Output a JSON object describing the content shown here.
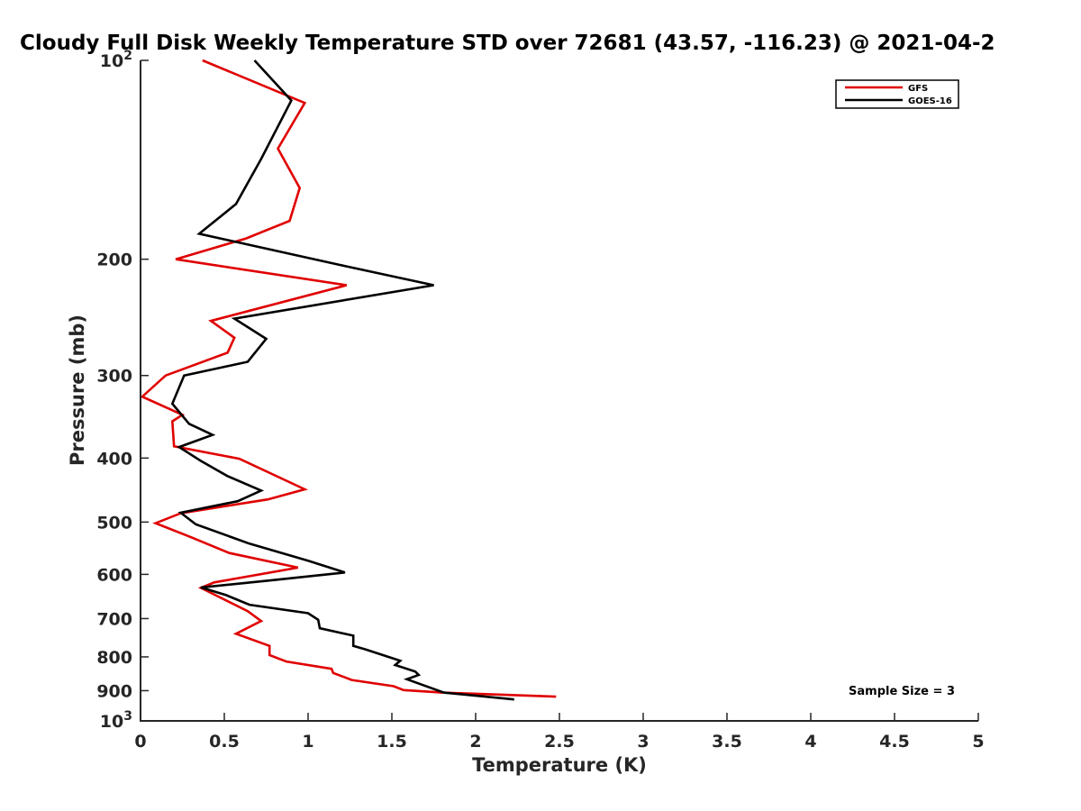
{
  "chart_data": {
    "type": "line",
    "title": "Cloudy Full Disk Weekly Temperature STD over 72681 (43.57, -116.23) @ 2021-04-2",
    "xlabel": "Temperature (K)",
    "ylabel": "Pressure (mb)",
    "xlim": [
      0,
      5
    ],
    "ylim": [
      100,
      1000
    ],
    "y_scale": "log",
    "y_reversed": true,
    "grid": false,
    "legend_position": "top-right",
    "x_ticks": [
      0,
      0.5,
      1,
      1.5,
      2,
      2.5,
      3,
      3.5,
      4,
      4.5,
      5
    ],
    "x_tick_labels": [
      "0",
      "0.5",
      "1",
      "1.5",
      "2",
      "2.5",
      "3",
      "3.5",
      "4",
      "4.5",
      "5"
    ],
    "y_ticks": [
      100,
      200,
      300,
      400,
      500,
      600,
      700,
      800,
      900,
      1000
    ],
    "y_tick_labels": [
      {
        "base": "10",
        "exp": "2"
      },
      {
        "base": "200",
        "exp": ""
      },
      {
        "base": "300",
        "exp": ""
      },
      {
        "base": "400",
        "exp": ""
      },
      {
        "base": "500",
        "exp": ""
      },
      {
        "base": "600",
        "exp": ""
      },
      {
        "base": "700",
        "exp": ""
      },
      {
        "base": "800",
        "exp": ""
      },
      {
        "base": "900",
        "exp": ""
      },
      {
        "base": "10",
        "exp": "3"
      }
    ],
    "annotation": "Sample Size = 3",
    "series": [
      {
        "name": "GFS",
        "color": "#e00000",
        "points": [
          [
            0.37,
            100
          ],
          [
            0.98,
            116
          ],
          [
            0.82,
            136
          ],
          [
            0.95,
            156
          ],
          [
            0.89,
            175
          ],
          [
            0.63,
            186
          ],
          [
            0.21,
            200
          ],
          [
            1.23,
            219
          ],
          [
            0.42,
            248
          ],
          [
            0.56,
            263
          ],
          [
            0.52,
            277
          ],
          [
            0.15,
            300
          ],
          [
            0.01,
            323
          ],
          [
            0.25,
            344
          ],
          [
            0.19,
            352
          ],
          [
            0.2,
            384
          ],
          [
            0.59,
            401
          ],
          [
            0.98,
            446
          ],
          [
            0.76,
            462
          ],
          [
            0.24,
            485
          ],
          [
            0.09,
            502
          ],
          [
            0.3,
            527
          ],
          [
            0.53,
            557
          ],
          [
            0.94,
            586
          ],
          [
            0.44,
            617
          ],
          [
            0.36,
            629
          ],
          [
            0.64,
            682
          ],
          [
            0.72,
            706
          ],
          [
            0.57,
            738
          ],
          [
            0.77,
            770
          ],
          [
            0.77,
            795
          ],
          [
            0.87,
            813
          ],
          [
            1.14,
            834
          ],
          [
            1.15,
            846
          ],
          [
            1.26,
            867
          ],
          [
            1.51,
            886
          ],
          [
            1.57,
            898
          ],
          [
            1.8,
            906
          ],
          [
            2.48,
            919
          ]
        ]
      },
      {
        "name": "GOES-16",
        "color": "#000000",
        "points": [
          [
            0.68,
            100
          ],
          [
            0.9,
            115
          ],
          [
            0.72,
            141
          ],
          [
            0.57,
            165
          ],
          [
            0.35,
            183
          ],
          [
            1.19,
            204
          ],
          [
            1.75,
            219
          ],
          [
            0.56,
            246
          ],
          [
            0.75,
            264
          ],
          [
            0.64,
            286
          ],
          [
            0.26,
            300
          ],
          [
            0.19,
            331
          ],
          [
            0.29,
            355
          ],
          [
            0.43,
            369
          ],
          [
            0.23,
            385
          ],
          [
            0.36,
            404
          ],
          [
            0.52,
            426
          ],
          [
            0.72,
            448
          ],
          [
            0.58,
            465
          ],
          [
            0.24,
            484
          ],
          [
            0.33,
            504
          ],
          [
            0.65,
            539
          ],
          [
            1.0,
            572
          ],
          [
            1.22,
            596
          ],
          [
            0.77,
            613
          ],
          [
            0.36,
            628
          ],
          [
            0.51,
            645
          ],
          [
            0.65,
            667
          ],
          [
            1.0,
            687
          ],
          [
            1.06,
            703
          ],
          [
            1.07,
            724
          ],
          [
            1.27,
            743
          ],
          [
            1.27,
            770
          ],
          [
            1.34,
            779
          ],
          [
            1.55,
            811
          ],
          [
            1.52,
            823
          ],
          [
            1.64,
            842
          ],
          [
            1.66,
            852
          ],
          [
            1.59,
            865
          ],
          [
            1.81,
            906
          ],
          [
            2.23,
            928
          ]
        ]
      }
    ]
  }
}
